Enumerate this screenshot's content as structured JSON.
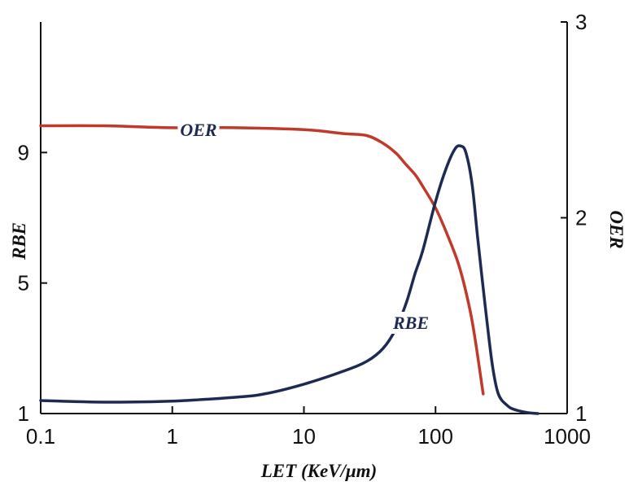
{
  "chart_data": {
    "type": "line",
    "title": "",
    "xlabel": "LET  (KeV/μm)",
    "ylabel": "RBE",
    "y2label": "OER",
    "x_scale": "log",
    "xlim": [
      0.1,
      1000
    ],
    "xticks": [
      0.1,
      1,
      10,
      100,
      1000
    ],
    "xtick_labels": [
      "0.1",
      "1",
      "10",
      "100",
      "1000"
    ],
    "ylim": [
      1,
      13
    ],
    "yticks": [
      1,
      5,
      9
    ],
    "ytick_labels": [
      "1",
      "5",
      "9"
    ],
    "y2lim": [
      1,
      3
    ],
    "y2ticks": [
      1,
      2,
      3
    ],
    "y2tick_labels": [
      "1",
      "2",
      "3"
    ],
    "grid": false,
    "legend": "none",
    "series": [
      {
        "name": "OER",
        "axis": "right",
        "color": "#c0392b",
        "x": [
          0.1,
          0.3,
          1,
          3,
          10,
          20,
          30,
          40,
          50,
          60,
          70,
          80,
          100,
          120,
          150,
          180,
          200,
          230
        ],
        "y": [
          2.47,
          2.47,
          2.46,
          2.46,
          2.45,
          2.43,
          2.42,
          2.38,
          2.33,
          2.27,
          2.22,
          2.16,
          2.05,
          1.93,
          1.76,
          1.55,
          1.38,
          1.1
        ]
      },
      {
        "name": "RBE",
        "axis": "left",
        "color": "#1d2a52",
        "x": [
          0.1,
          0.3,
          1,
          3,
          5,
          10,
          20,
          30,
          40,
          50,
          60,
          70,
          80,
          100,
          120,
          140,
          155,
          170,
          190,
          210,
          240,
          270,
          300,
          350,
          400,
          500,
          600
        ],
        "y": [
          1.4,
          1.35,
          1.38,
          1.5,
          1.6,
          1.9,
          2.3,
          2.6,
          3.0,
          3.6,
          4.4,
          5.3,
          6.0,
          7.5,
          8.5,
          9.1,
          9.2,
          9.0,
          8.0,
          6.3,
          4.2,
          2.5,
          1.6,
          1.25,
          1.12,
          1.03,
          1.0
        ]
      }
    ],
    "annotations": [
      {
        "text": "OER",
        "series": "OER"
      },
      {
        "text": "RBE",
        "series": "RBE"
      }
    ]
  }
}
